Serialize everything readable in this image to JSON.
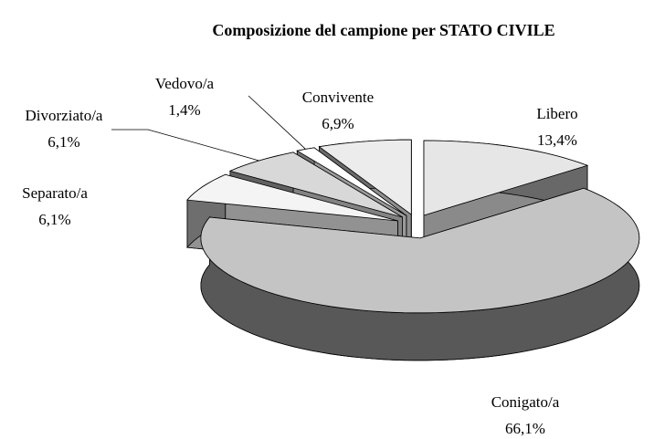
{
  "chart_data": {
    "type": "pie",
    "title": "Composizione del campione per STATO CIVILE",
    "categories": [
      "Libero",
      "Conigato/a",
      "Separato/a",
      "Divorziato/a",
      "Vedovo/a",
      "Convivente"
    ],
    "values": [
      13.4,
      66.1,
      6.1,
      6.1,
      1.4,
      6.9
    ],
    "value_labels": [
      "13,4%",
      "66,1%",
      "6,1%",
      "6,1%",
      "1,4%",
      "6,9%"
    ],
    "colors": [
      "#e6e6e6",
      "#c4c4c4",
      "#f4f4f4",
      "#d8d8d8",
      "#ffffff",
      "#ececec"
    ]
  }
}
